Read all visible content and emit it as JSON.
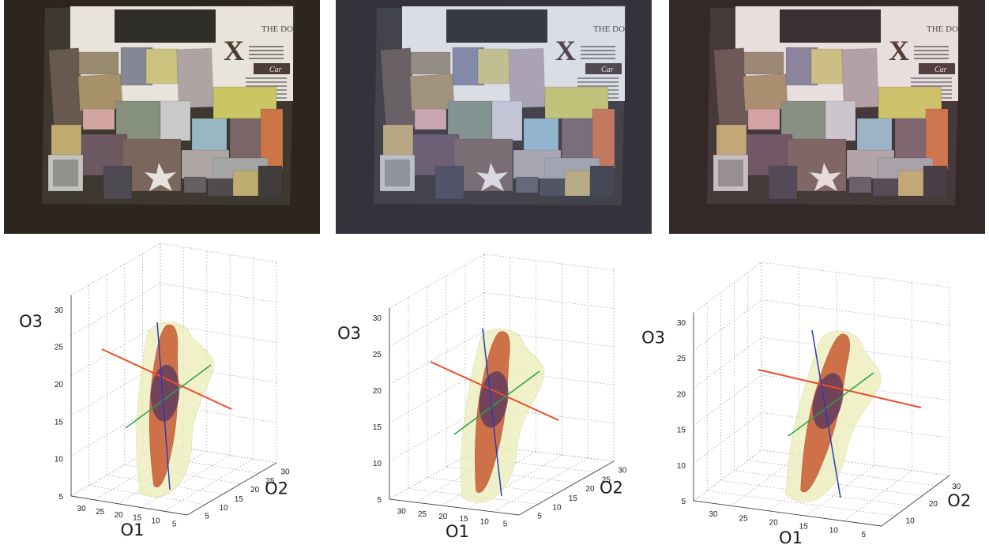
{
  "photos": [
    {
      "tint": "#eed9a8",
      "strength": 0.1,
      "headline": "THE DO",
      "logo": "X",
      "subhead": "Car"
    },
    {
      "tint": "#a9b9ef",
      "strength": 0.2,
      "headline": "THE DO",
      "logo": "X",
      "subhead": "Car"
    },
    {
      "tint": "#f0b4c6",
      "strength": 0.14,
      "headline": "THE DO",
      "logo": "X",
      "subhead": "Car"
    }
  ],
  "plot_labels": {
    "o1": "O1",
    "o2": "O2",
    "o3": "O3"
  },
  "chart_data": [
    {
      "type": "3d-isosurface",
      "axes": {
        "o1": {
          "label": "O1",
          "ticks": [
            5,
            10,
            15,
            20,
            25,
            30
          ]
        },
        "o2": {
          "label": "O2",
          "ticks": [
            5,
            10,
            15,
            20,
            25,
            30
          ]
        },
        "o3": {
          "label": "O3",
          "ticks": [
            5,
            10,
            15,
            20,
            25,
            30
          ]
        }
      },
      "grid": true,
      "principal_axes_colors": {
        "o1": "#f04a2a",
        "o2": "#2aa04a",
        "o3": "#2a3cb8"
      }
    },
    {
      "type": "3d-isosurface",
      "axes": {
        "o1": {
          "label": "O1",
          "ticks": [
            5,
            10,
            15,
            20,
            25,
            30
          ]
        },
        "o2": {
          "label": "O2",
          "ticks": [
            5,
            10,
            15,
            20,
            25,
            30
          ]
        },
        "o3": {
          "label": "O3",
          "ticks": [
            5,
            10,
            15,
            20,
            25,
            30
          ]
        }
      },
      "grid": true,
      "principal_axes_colors": {
        "o1": "#f04a2a",
        "o2": "#2aa04a",
        "o3": "#2a3cb8"
      }
    },
    {
      "type": "3d-isosurface",
      "axes": {
        "o1": {
          "label": "O1",
          "ticks": [
            5,
            10,
            15,
            20,
            25,
            30
          ]
        },
        "o2": {
          "label": "O2",
          "ticks": [
            10,
            20,
            30
          ]
        },
        "o3": {
          "label": "O3",
          "ticks": [
            5,
            10,
            15,
            20,
            25,
            30
          ]
        }
      },
      "grid": true,
      "principal_axes_colors": {
        "o1": "#f04a2a",
        "o2": "#2aa04a",
        "o3": "#2a3cb8"
      }
    }
  ]
}
